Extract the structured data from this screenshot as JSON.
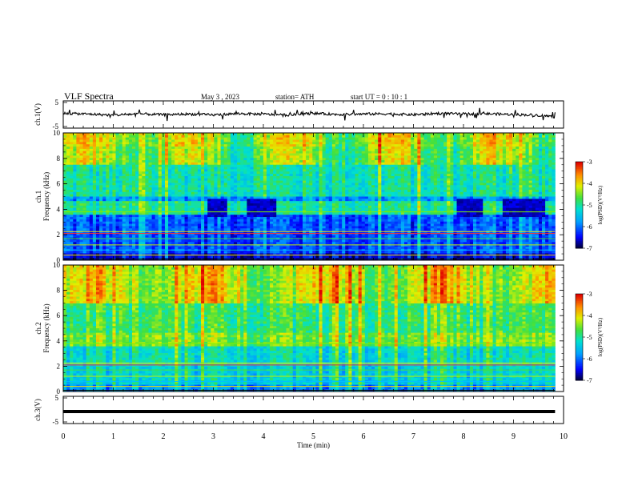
{
  "header": {
    "title": "VLF Spectra",
    "date": "May 3 , 2023",
    "station": "station= ATH",
    "start": "start UT = 0 : 10 : 1"
  },
  "chart_data": [
    {
      "type": "line",
      "id": "ch1-waveform",
      "ylabel": "ch.1(V)",
      "ylim": [
        -5,
        5
      ],
      "yticks": [
        "5",
        "-5"
      ],
      "xlim": [
        0,
        10
      ],
      "x": [
        0.0,
        0.5,
        1.0,
        1.5,
        2.0,
        2.5,
        3.0,
        3.5,
        4.0,
        4.5,
        5.0,
        5.5,
        6.0,
        6.5,
        7.0,
        7.5,
        8.0,
        8.5,
        9.0,
        9.5,
        9.83
      ],
      "y": [
        0.5,
        0.2,
        -0.3,
        0.3,
        -0.1,
        0.2,
        -0.2,
        0.4,
        0.1,
        -0.2,
        0.5,
        0.0,
        0.2,
        0.3,
        -0.1,
        0.5,
        0.2,
        0.3,
        0.0,
        -0.3,
        -1.0
      ],
      "color": "#000000"
    },
    {
      "type": "heatmap",
      "id": "ch1-spectrogram",
      "ylabel": "ch.1\nFrequency  (kHz)",
      "ylim": [
        0,
        10
      ],
      "yticks": [
        "0",
        "2",
        "4",
        "6",
        "8",
        "10"
      ],
      "xlim": [
        0,
        9.83
      ],
      "colorbar": {
        "label": "log(PSD)(V²/Hz)",
        "range": [
          -7,
          -3
        ],
        "ticks": [
          "-3",
          "-4",
          "-5",
          "-6",
          "-7"
        ]
      },
      "dark_blocks_min": [
        [
          2.87,
          3.27
        ],
        [
          3.68,
          4.23
        ],
        [
          7.88,
          8.37
        ],
        [
          8.78,
          9.65
        ]
      ],
      "dark_blocks_khz": [
        3.4,
        4.8
      ]
    },
    {
      "type": "heatmap",
      "id": "ch2-spectrogram",
      "ylabel": "ch.2\nFrequency  (kHz)",
      "ylim": [
        0,
        10
      ],
      "yticks": [
        "0",
        "2",
        "4",
        "6",
        "8",
        "10"
      ],
      "xlim": [
        0,
        9.83
      ],
      "colorbar": {
        "label": "log(PSD)(V²/Hz)",
        "range": [
          -7,
          -3
        ],
        "ticks": [
          "-3",
          "-4",
          "-5",
          "-6",
          "-7"
        ]
      }
    },
    {
      "type": "line",
      "id": "ch3-waveform",
      "ylabel": "ch.3(V)",
      "ylim": [
        -5,
        5
      ],
      "yticks": [
        "5",
        "-5"
      ],
      "xlim": [
        0,
        10
      ],
      "x": [
        0,
        9.83
      ],
      "y": [
        0,
        0
      ],
      "color": "#000000"
    }
  ],
  "x_axis": {
    "label": "Time  (min)",
    "ticks": [
      "0",
      "1",
      "2",
      "3",
      "4",
      "5",
      "6",
      "7",
      "8",
      "9",
      "10"
    ]
  }
}
